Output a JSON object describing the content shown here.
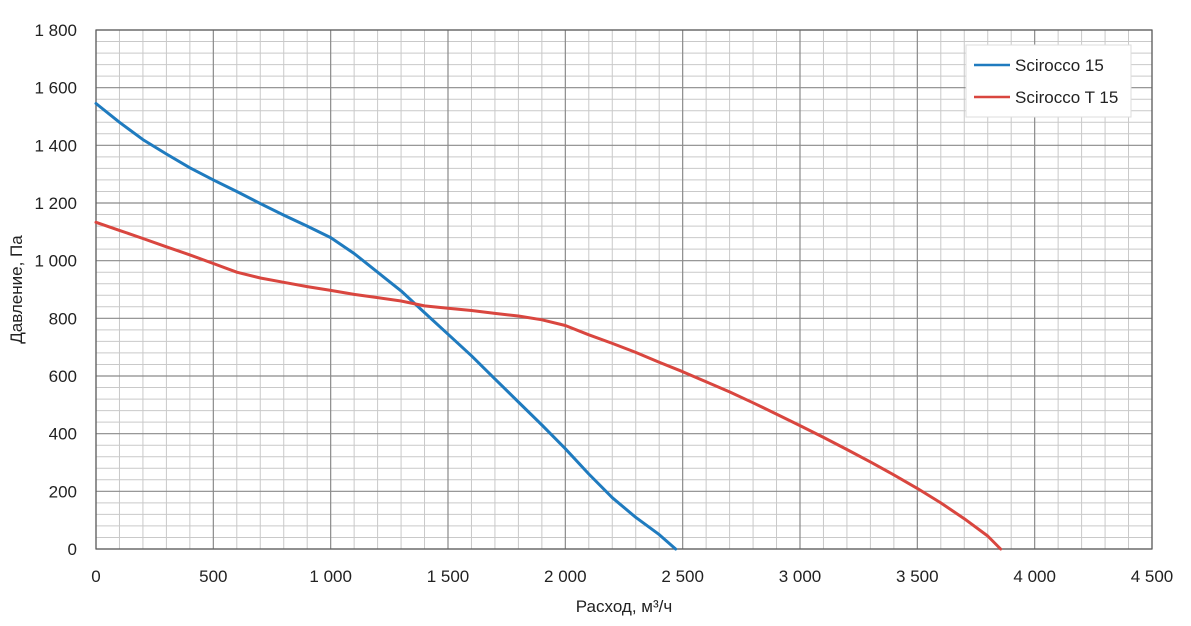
{
  "chart_data": {
    "type": "line",
    "xlabel": "Расход, м³/ч",
    "ylabel": "Давление, Па",
    "xlim": [
      0,
      4500
    ],
    "ylim": [
      0,
      1800
    ],
    "x_major_step": 500,
    "y_major_step": 200,
    "x_minor_step": 100,
    "y_minor_step": 40,
    "grid": true,
    "legend_position": "top-right",
    "x_tick_labels": [
      "0",
      "500",
      "1 000",
      "1 500",
      "2 000",
      "2 500",
      "3 000",
      "3 500",
      "4 000",
      "4 500"
    ],
    "y_tick_labels": [
      "0",
      "200",
      "400",
      "600",
      "800",
      "1 000",
      "1 200",
      "1 400",
      "1 600",
      "1 800"
    ],
    "series": [
      {
        "name": "Scirocco 15",
        "color": "#1f7bbf",
        "points": [
          [
            0,
            1545
          ],
          [
            100,
            1480
          ],
          [
            200,
            1420
          ],
          [
            300,
            1370
          ],
          [
            400,
            1322
          ],
          [
            500,
            1280
          ],
          [
            600,
            1240
          ],
          [
            700,
            1198
          ],
          [
            800,
            1158
          ],
          [
            900,
            1120
          ],
          [
            1000,
            1080
          ],
          [
            1100,
            1025
          ],
          [
            1200,
            960
          ],
          [
            1300,
            895
          ],
          [
            1400,
            820
          ],
          [
            1500,
            745
          ],
          [
            1600,
            670
          ],
          [
            1700,
            590
          ],
          [
            1800,
            510
          ],
          [
            1900,
            430
          ],
          [
            2000,
            348
          ],
          [
            2100,
            260
          ],
          [
            2200,
            178
          ],
          [
            2300,
            110
          ],
          [
            2400,
            50
          ],
          [
            2470,
            0
          ]
        ]
      },
      {
        "name": "Scirocco T 15",
        "color": "#d9463f",
        "points": [
          [
            0,
            1133
          ],
          [
            100,
            1105
          ],
          [
            200,
            1077
          ],
          [
            300,
            1048
          ],
          [
            400,
            1020
          ],
          [
            500,
            990
          ],
          [
            600,
            960
          ],
          [
            700,
            940
          ],
          [
            800,
            925
          ],
          [
            900,
            910
          ],
          [
            1000,
            897
          ],
          [
            1100,
            883
          ],
          [
            1200,
            872
          ],
          [
            1300,
            860
          ],
          [
            1400,
            843
          ],
          [
            1500,
            835
          ],
          [
            1600,
            827
          ],
          [
            1700,
            817
          ],
          [
            1800,
            808
          ],
          [
            1900,
            795
          ],
          [
            2000,
            775
          ],
          [
            2100,
            743
          ],
          [
            2200,
            713
          ],
          [
            2300,
            682
          ],
          [
            2400,
            648
          ],
          [
            2500,
            615
          ],
          [
            2600,
            580
          ],
          [
            2700,
            545
          ],
          [
            2800,
            507
          ],
          [
            2900,
            468
          ],
          [
            3000,
            428
          ],
          [
            3100,
            387
          ],
          [
            3200,
            345
          ],
          [
            3300,
            302
          ],
          [
            3400,
            257
          ],
          [
            3500,
            210
          ],
          [
            3600,
            160
          ],
          [
            3700,
            105
          ],
          [
            3800,
            45
          ],
          [
            3855,
            0
          ]
        ]
      }
    ]
  }
}
